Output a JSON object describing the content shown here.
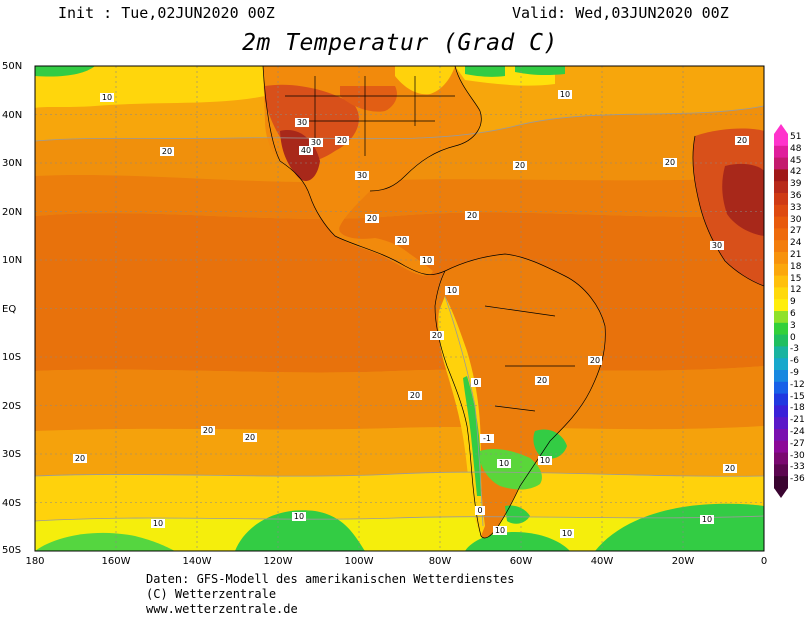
{
  "header": {
    "init": "Init : Tue,02JUN2020 00Z",
    "valid": "Valid: Wed,03JUN2020 00Z",
    "title": "2m Temperatur (Grad C)"
  },
  "axes": {
    "lat_labels": [
      "50N",
      "40N",
      "30N",
      "20N",
      "10N",
      "EQ",
      "10S",
      "20S",
      "30S",
      "40S",
      "50S"
    ],
    "lon_labels": [
      "180",
      "160W",
      "140W",
      "120W",
      "100W",
      "80W",
      "60W",
      "40W",
      "20W",
      "0"
    ]
  },
  "colorbar": {
    "labels": [
      "51",
      "48",
      "45",
      "42",
      "39",
      "36",
      "33",
      "30",
      "27",
      "24",
      "21",
      "18",
      "15",
      "12",
      "9",
      "6",
      "3",
      "0",
      "-3",
      "-6",
      "-9",
      "-12",
      "-15",
      "-18",
      "-21",
      "-24",
      "-27",
      "-30",
      "-33",
      "-36"
    ],
    "colors": [
      "#ff33cc",
      "#e01e9c",
      "#c41a6e",
      "#a01818",
      "#b82a1a",
      "#cf3a14",
      "#de4a10",
      "#e85a0c",
      "#ee6a0c",
      "#f37d0c",
      "#f7920c",
      "#fba70c",
      "#ffc00c",
      "#ffd90c",
      "#ffee0c",
      "#8fe12a",
      "#33d03a",
      "#20bf60",
      "#1ab4a0",
      "#18a8cc",
      "#1888e0",
      "#1860e8",
      "#2038e0",
      "#3a20d8",
      "#5a18c8",
      "#7a10b0",
      "#8c0898",
      "#7a0870",
      "#5c0650",
      "#3a0430"
    ]
  },
  "map": {
    "contour_labels": [
      "10",
      "20",
      "30",
      "40",
      "0"
    ],
    "colors": {
      "ocean_tropical": "#e8720c",
      "ocean_warm": "#ee8a0c",
      "ocean_mild": "#f5a20c",
      "cool": "#ffd20c",
      "cold": "#f5ee0c",
      "green": "#33cc44",
      "hot": "#d8501a",
      "very_hot": "#a8281a"
    }
  },
  "credits": {
    "line1": "Daten: GFS-Modell des amerikanischen Wetterdienstes",
    "line2": "(C) Wetterzentrale",
    "line3": "www.wetterzentrale.de"
  }
}
